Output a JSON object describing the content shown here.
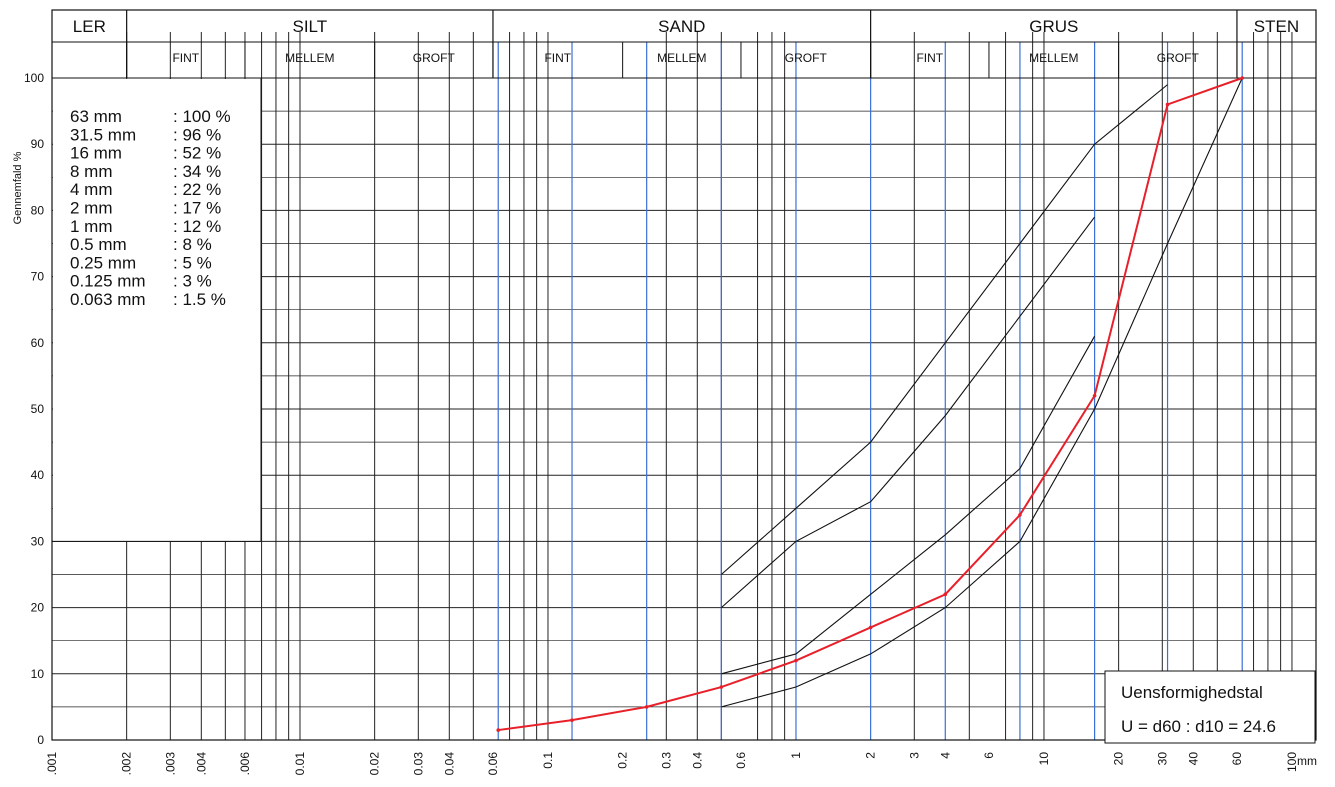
{
  "chart_data": {
    "type": "line",
    "ylabel": "Gennemfald %",
    "x_unit": "mm",
    "x_scale": "log",
    "xlim": [
      0.001,
      125
    ],
    "ylim": [
      0,
      100
    ],
    "y_ticks": [
      0,
      10,
      20,
      30,
      40,
      50,
      60,
      70,
      80,
      90,
      100
    ],
    "x_ticks": [
      {
        "v": 0.001,
        "label": ".001"
      },
      {
        "v": 0.002,
        "label": ".002"
      },
      {
        "v": 0.003,
        "label": ".003"
      },
      {
        "v": 0.004,
        "label": ".004"
      },
      {
        "v": 0.006,
        "label": ".006"
      },
      {
        "v": 0.01,
        "label": "0.01"
      },
      {
        "v": 0.02,
        "label": "0.02"
      },
      {
        "v": 0.03,
        "label": "0.03"
      },
      {
        "v": 0.04,
        "label": "0.04"
      },
      {
        "v": 0.06,
        "label": "0.06"
      },
      {
        "v": 0.1,
        "label": "0.1"
      },
      {
        "v": 0.2,
        "label": "0.2"
      },
      {
        "v": 0.3,
        "label": "0.3"
      },
      {
        "v": 0.4,
        "label": "0.4"
      },
      {
        "v": 0.6,
        "label": "0.6"
      },
      {
        "v": 1,
        "label": "1"
      },
      {
        "v": 2,
        "label": "2"
      },
      {
        "v": 3,
        "label": "3"
      },
      {
        "v": 4,
        "label": "4"
      },
      {
        "v": 6,
        "label": "6"
      },
      {
        "v": 10,
        "label": "10"
      },
      {
        "v": 20,
        "label": "20"
      },
      {
        "v": 30,
        "label": "30"
      },
      {
        "v": 40,
        "label": "40"
      },
      {
        "v": 60,
        "label": "60"
      },
      {
        "v": 100,
        "label": "100"
      }
    ],
    "header": {
      "main": [
        {
          "label": "LER",
          "from": 0.001,
          "to": 0.002
        },
        {
          "label": "SILT",
          "from": 0.002,
          "to": 0.06
        },
        {
          "label": "SAND",
          "from": 0.06,
          "to": 2
        },
        {
          "label": "GRUS",
          "from": 2,
          "to": 60
        },
        {
          "label": "STEN",
          "from": 60,
          "to": 125
        }
      ],
      "sub": [
        {
          "label": "FINT",
          "from": 0.002,
          "to": 0.006
        },
        {
          "label": "MELLEM",
          "from": 0.006,
          "to": 0.02
        },
        {
          "label": "GROFT",
          "from": 0.02,
          "to": 0.06
        },
        {
          "label": "FINT",
          "from": 0.06,
          "to": 0.2
        },
        {
          "label": "MELLEM",
          "from": 0.2,
          "to": 0.6
        },
        {
          "label": "GROFT",
          "from": 0.6,
          "to": 2
        },
        {
          "label": "FINT",
          "from": 2,
          "to": 6
        },
        {
          "label": "MELLEM",
          "from": 6,
          "to": 20
        },
        {
          "label": "GROFT",
          "from": 20,
          "to": 60
        }
      ]
    },
    "sieve_results": [
      {
        "size": "63 mm",
        "pct": ": 100 %"
      },
      {
        "size": "31.5 mm",
        "pct": ": 96 %"
      },
      {
        "size": "16 mm",
        "pct": ": 52 %"
      },
      {
        "size": "8 mm",
        "pct": ": 34 %"
      },
      {
        "size": "4 mm",
        "pct": ": 22 %"
      },
      {
        "size": "2 mm",
        "pct": ": 17 %"
      },
      {
        "size": "1 mm",
        "pct": ": 12 %"
      },
      {
        "size": "0.5 mm",
        "pct": ": 8 %"
      },
      {
        "size": "0.25 mm",
        "pct": ": 5 %"
      },
      {
        "size": "0.125 mm",
        "pct": ": 3 %"
      },
      {
        "size": "0.063 mm",
        "pct": ": 1.5 %"
      }
    ],
    "sample_curve": {
      "color": "#e8202a",
      "x": [
        0.063,
        0.125,
        0.25,
        0.5,
        1,
        2,
        4,
        8,
        16,
        31.5,
        63
      ],
      "y": [
        1.5,
        3,
        5,
        8,
        12,
        17,
        22,
        34,
        52,
        96,
        100
      ]
    },
    "envelope_curves": [
      {
        "x": [
          0.5,
          1,
          2,
          4,
          8,
          16,
          31.5
        ],
        "y": [
          25,
          35,
          45,
          60,
          75,
          90,
          99
        ]
      },
      {
        "x": [
          0.5,
          1,
          2,
          4,
          8,
          16
        ],
        "y": [
          20,
          30,
          36,
          49,
          64,
          79
        ]
      },
      {
        "x": [
          0.5,
          1,
          2,
          4,
          8,
          16
        ],
        "y": [
          10,
          13,
          22,
          31,
          41,
          61
        ]
      },
      {
        "x": [
          0.5,
          1,
          2,
          4,
          8,
          16,
          31.5,
          63
        ],
        "y": [
          5,
          8,
          13,
          20,
          30,
          50,
          75,
          100
        ]
      }
    ],
    "uniformity": {
      "label": "Uensformighedstal",
      "formula": "U = d60 : d10 = 24.6"
    }
  }
}
